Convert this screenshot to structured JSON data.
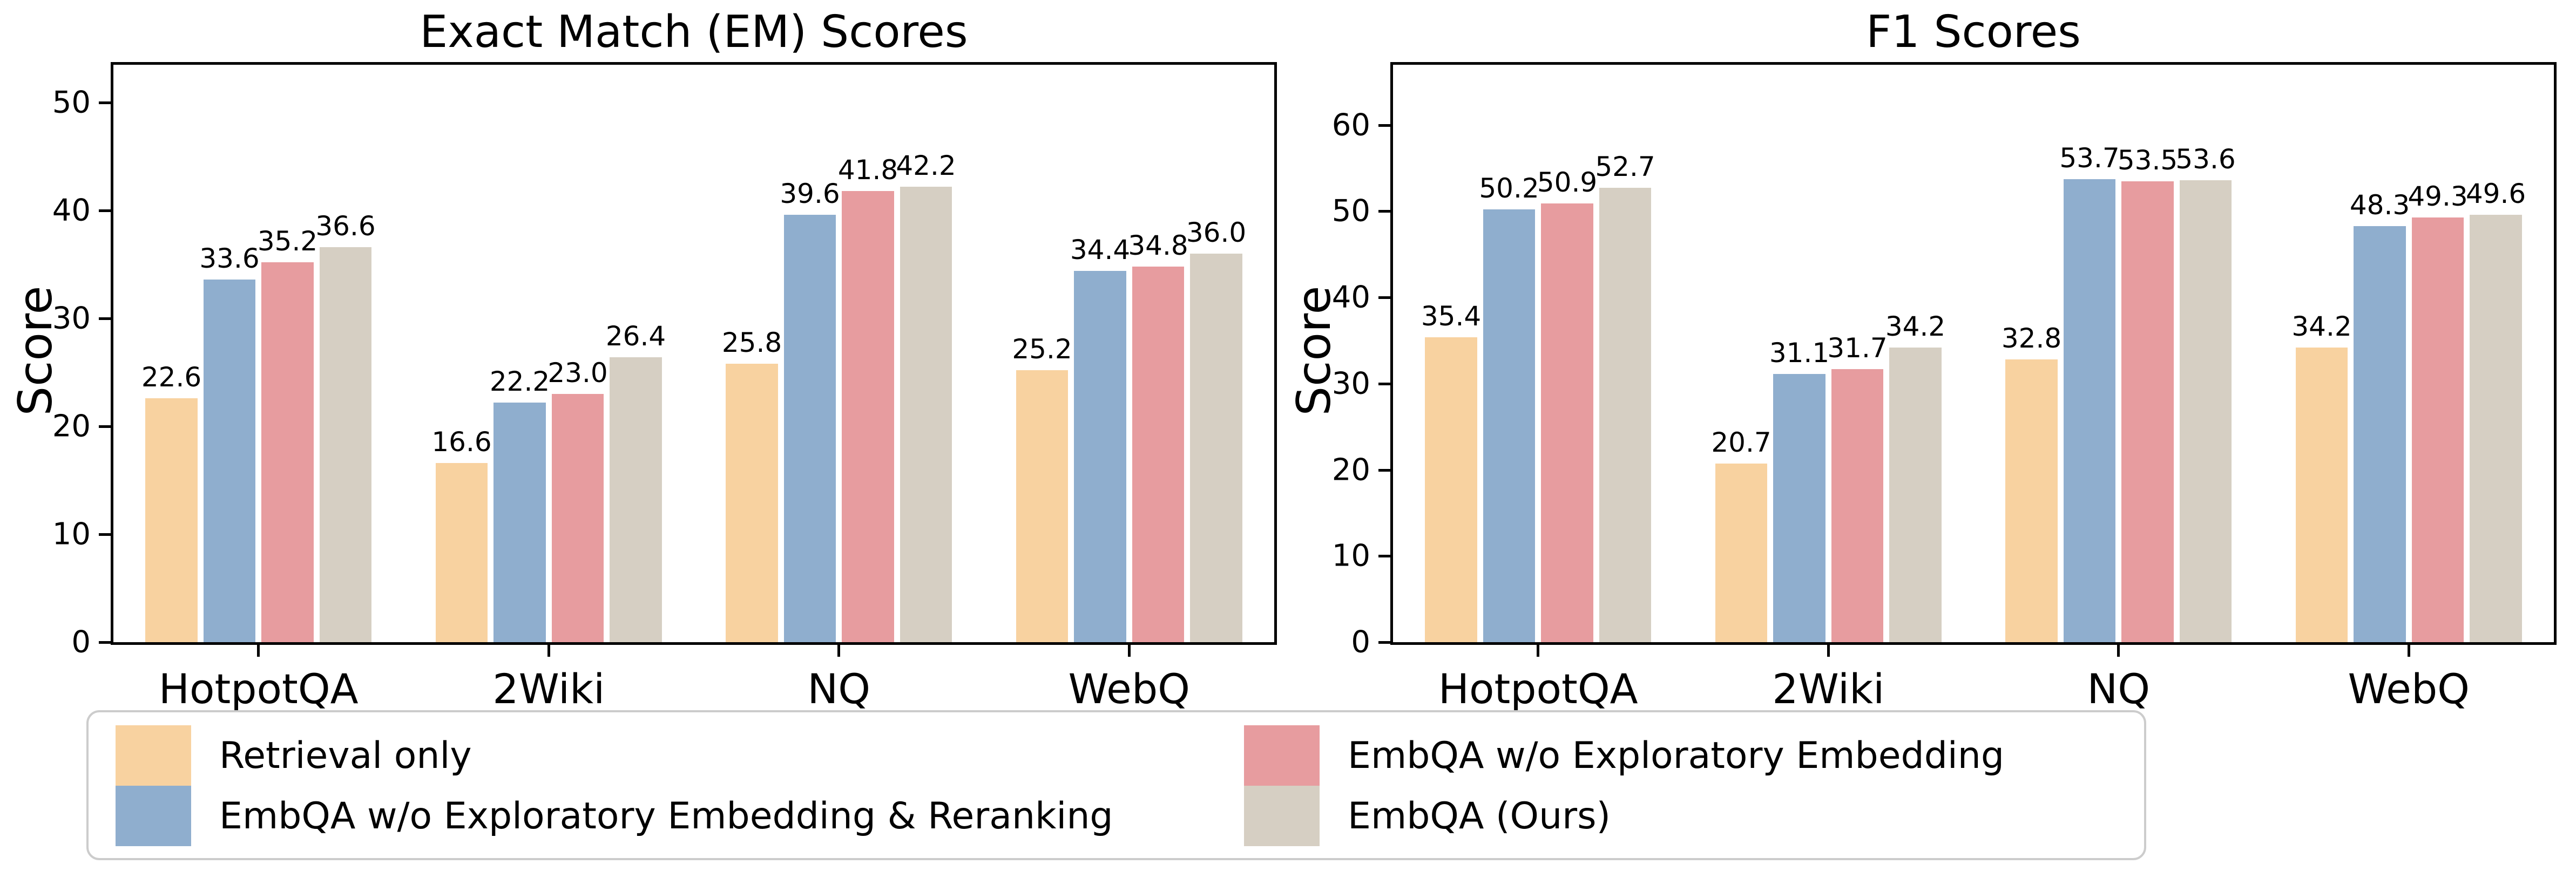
{
  "chart_data": [
    {
      "type": "bar",
      "title": "Exact Match (EM) Scores",
      "ylabel": "Score",
      "xlabel": "",
      "categories": [
        "HotpotQA",
        "2Wiki",
        "NQ",
        "WebQ"
      ],
      "series": [
        {
          "name": "Retrieval only",
          "color": "#F8D2A0",
          "values": [
            22.6,
            16.6,
            25.8,
            25.2
          ]
        },
        {
          "name": "EmbQA w/o Exploratory Embedding & Reranking",
          "color": "#8FAECE",
          "values": [
            33.6,
            22.2,
            39.6,
            34.4
          ]
        },
        {
          "name": "EmbQA w/o Exploratory Embedding",
          "color": "#E79C9F",
          "values": [
            35.2,
            23.0,
            41.8,
            34.8
          ]
        },
        {
          "name": "EmbQA (Ours)",
          "color": "#D6CFC3",
          "values": [
            36.6,
            26.4,
            42.2,
            36.0
          ]
        }
      ],
      "yticks": [
        0,
        10,
        20,
        30,
        40,
        50
      ],
      "ylim": [
        0,
        53.5
      ],
      "grid": "off",
      "value_labels": "one-decimal-above-bars"
    },
    {
      "type": "bar",
      "title": "F1 Scores",
      "ylabel": "Score",
      "xlabel": "",
      "categories": [
        "HotpotQA",
        "2Wiki",
        "NQ",
        "WebQ"
      ],
      "series": [
        {
          "name": "Retrieval only",
          "color": "#F8D2A0",
          "values": [
            35.4,
            20.7,
            32.8,
            34.2
          ]
        },
        {
          "name": "EmbQA w/o Exploratory Embedding & Reranking",
          "color": "#8FAECE",
          "values": [
            50.2,
            31.1,
            53.7,
            48.3
          ]
        },
        {
          "name": "EmbQA w/o Exploratory Embedding",
          "color": "#E79C9F",
          "values": [
            50.9,
            31.7,
            53.5,
            49.3
          ]
        },
        {
          "name": "EmbQA (Ours)",
          "color": "#D6CFC3",
          "values": [
            52.7,
            34.2,
            53.6,
            49.6
          ]
        }
      ],
      "yticks": [
        0,
        10,
        20,
        30,
        40,
        50,
        60
      ],
      "ylim": [
        0,
        67
      ],
      "grid": "off",
      "value_labels": "one-decimal-above-bars"
    }
  ],
  "legend": {
    "position": "bottom-left",
    "columns": 2,
    "items": [
      {
        "label": "Retrieval only",
        "color": "#F8D2A0"
      },
      {
        "label": "EmbQA w/o Exploratory Embedding & Reranking",
        "color": "#8FAECE"
      },
      {
        "label": "EmbQA w/o Exploratory Embedding",
        "color": "#E79C9F"
      },
      {
        "label": "EmbQA (Ours)",
        "color": "#D6CFC3"
      }
    ]
  }
}
